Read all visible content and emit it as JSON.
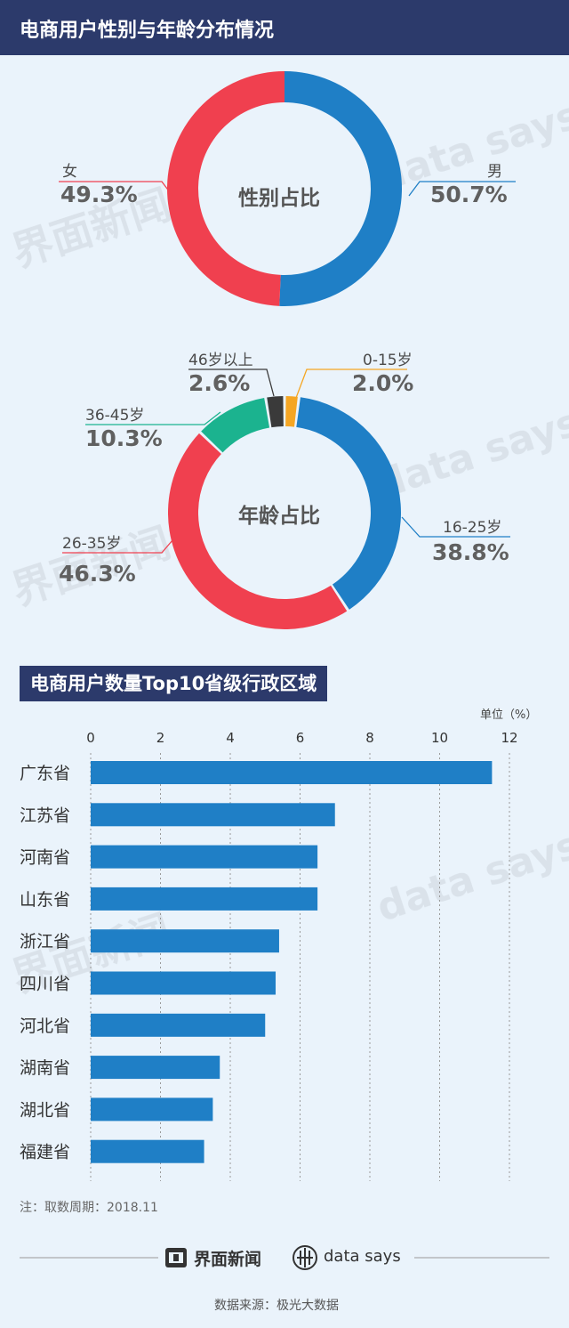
{
  "header": {
    "title": "电商用户性别与年龄分布情况"
  },
  "watermark": {
    "brand_cn": "界面新闻",
    "brand_en": "data says"
  },
  "gender_chart": {
    "center_label": "性别占比",
    "colors": {
      "男": "#1f7fc6",
      "女": "#f0404f"
    },
    "slices": [
      {
        "label": "男",
        "value": 50.7,
        "pct_text": "50.7%"
      },
      {
        "label": "女",
        "value": 49.3,
        "pct_text": "49.3%"
      }
    ]
  },
  "age_chart": {
    "center_label": "年龄占比",
    "slices": [
      {
        "label": "0-15岁",
        "value": 2.0,
        "pct_text": "2.0%",
        "color": "#f5a623"
      },
      {
        "label": "16-25岁",
        "value": 38.8,
        "pct_text": "38.8%",
        "color": "#1f7fc6"
      },
      {
        "label": "26-35岁",
        "value": 46.3,
        "pct_text": "46.3%",
        "color": "#f0404f"
      },
      {
        "label": "36-45岁",
        "value": 10.3,
        "pct_text": "10.3%",
        "color": "#1bb38f"
      },
      {
        "label": "46岁以上",
        "value": 2.6,
        "pct_text": "2.6%",
        "color": "#3a3a3a"
      }
    ]
  },
  "bar_section": {
    "title": "电商用户数量Top10省级行政区域",
    "unit": "单位（%）"
  },
  "chart_data": {
    "type": "bar",
    "orientation": "horizontal",
    "title": "电商用户数量Top10省级行政区域",
    "xlim": [
      0,
      12
    ],
    "xticks": [
      "0",
      "2",
      "4",
      "6",
      "8",
      "10",
      "12"
    ],
    "categories": [
      "广东省",
      "江苏省",
      "河南省",
      "山东省",
      "浙江省",
      "四川省",
      "河北省",
      "湖南省",
      "湖北省",
      "福建省"
    ],
    "values": [
      11.5,
      7.0,
      6.5,
      6.5,
      5.4,
      5.3,
      5.0,
      3.7,
      3.5,
      3.25
    ],
    "bar_color": "#1f7fc6",
    "grid": true
  },
  "footer": {
    "note": "注：取数周期：2018.11",
    "source": "数据来源：极光大数据",
    "brand_cn": "界面新闻",
    "brand_en": "data says"
  }
}
